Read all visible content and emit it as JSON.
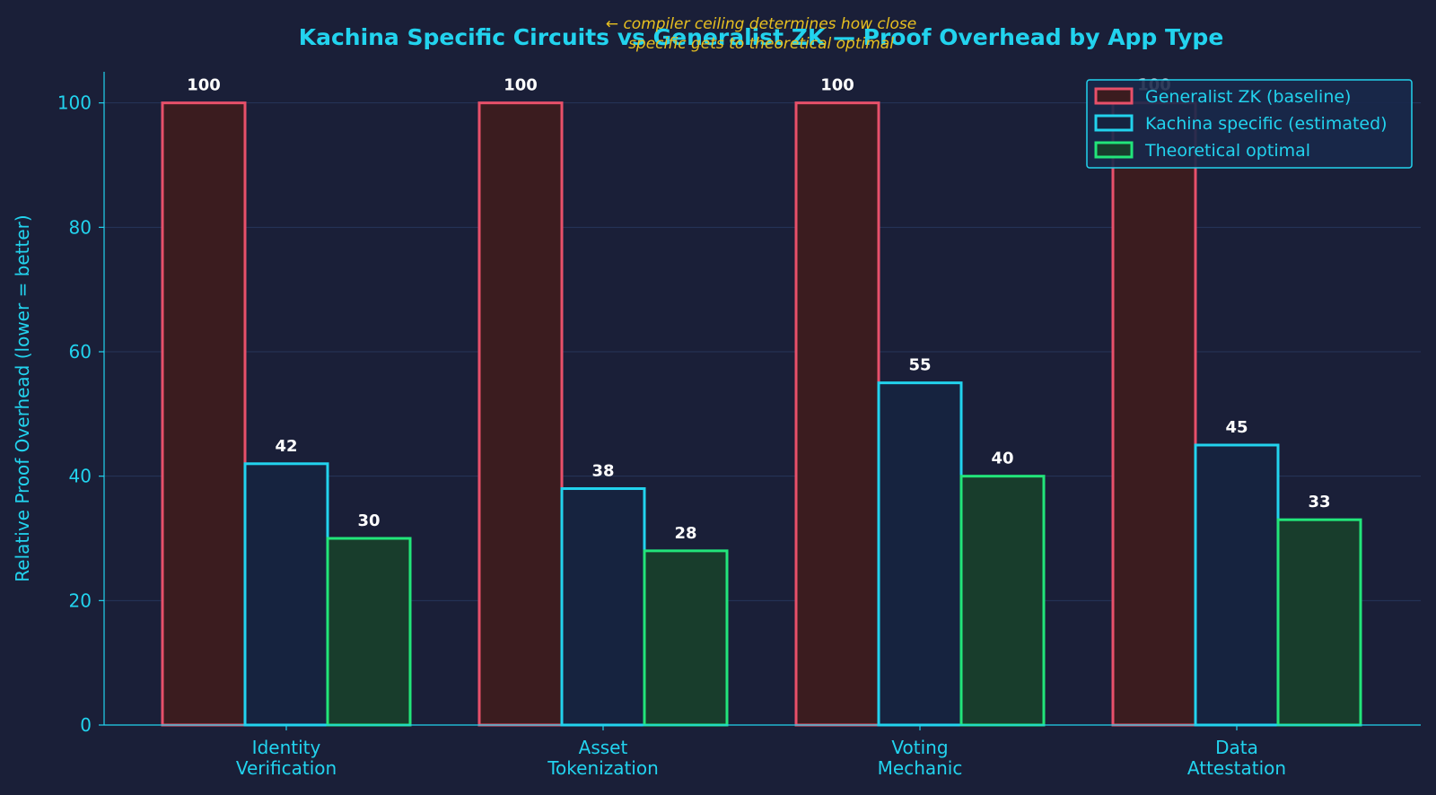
{
  "chart_data": {
    "type": "bar",
    "title": "Kachina Specific Circuits vs Generalist ZK — Proof Overhead by App Type",
    "annotation": {
      "line1": "← compiler ceiling determines how close",
      "line2": "specific gets to theoretical optimal"
    },
    "xlabel": "",
    "ylabel": "Relative Proof Overhead (lower = better)",
    "ylim": [
      0,
      105
    ],
    "yticks": [
      "0",
      "20",
      "40",
      "60",
      "80",
      "100"
    ],
    "grid": true,
    "legend_position": "top-right",
    "categories": [
      {
        "line1": "Identity",
        "line2": "Verification"
      },
      {
        "line1": "Asset",
        "line2": "Tokenization"
      },
      {
        "line1": "Voting",
        "line2": "Mechanic"
      },
      {
        "line1": "Data",
        "line2": "Attestation"
      }
    ],
    "series": [
      {
        "name": "Generalist ZK (baseline)",
        "values": [
          100,
          100,
          100,
          100
        ],
        "labels": [
          "100",
          "100",
          "100",
          "100"
        ],
        "color": "#e8506a",
        "fill": "#3b1c1f"
      },
      {
        "name": "Kachina specific (estimated)",
        "values": [
          42,
          38,
          55,
          45
        ],
        "labels": [
          "42",
          "38",
          "55",
          "45"
        ],
        "color": "#22d3ee",
        "fill": "#16233f"
      },
      {
        "name": "Theoretical optimal",
        "values": [
          30,
          28,
          40,
          33
        ],
        "labels": [
          "30",
          "28",
          "40",
          "33"
        ],
        "color": "#22e57a",
        "fill": "#183d2c"
      }
    ]
  },
  "colors": {
    "background": "#1a1f38",
    "title": "#22d3ee",
    "axis": "#22d3ee",
    "annotation": "#e8c020",
    "bar_label": "#ffffff",
    "grid": "#26365a"
  }
}
